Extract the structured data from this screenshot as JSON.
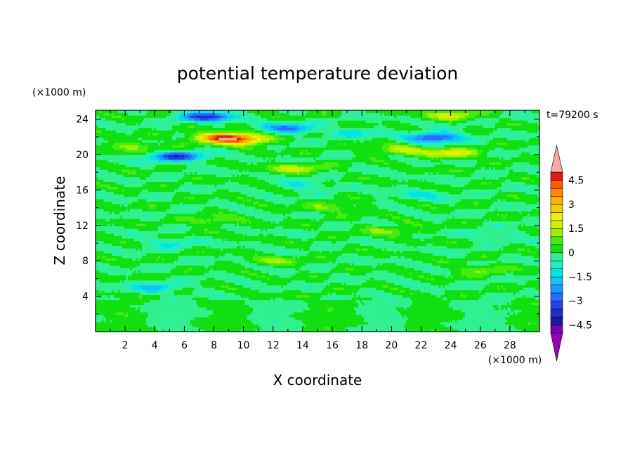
{
  "chart_data": {
    "type": "heatmap",
    "title": "potential temperature deviation",
    "xlabel": "X coordinate",
    "ylabel": "Z coordinate",
    "x_unit": "(×1000 m)",
    "y_unit": "(×1000 m)",
    "time_label": "t=79200 s",
    "xlim": [
      0,
      30
    ],
    "ylim": [
      0,
      25
    ],
    "x_ticks": [
      2,
      4,
      6,
      8,
      10,
      12,
      14,
      16,
      18,
      20,
      22,
      24,
      26,
      28
    ],
    "x_tick_labels": [
      "2",
      "4",
      "6",
      "8",
      "10",
      "12",
      "14",
      "16",
      "18",
      "20",
      "22",
      "24",
      "26",
      "28"
    ],
    "y_ticks": [
      4,
      8,
      12,
      16,
      20,
      24
    ],
    "y_tick_labels": [
      "4",
      "8",
      "12",
      "16",
      "20",
      "24"
    ],
    "colorbar": {
      "levels": [
        -5,
        -4.5,
        -4,
        -3.5,
        -3,
        -2.5,
        -2,
        -1.5,
        -1,
        -0.5,
        0,
        0.5,
        1,
        1.5,
        2,
        2.5,
        3,
        3.5,
        4,
        4.5,
        5
      ],
      "colors": [
        "#7a00b0",
        "#1a1aa0",
        "#1e2ecc",
        "#2246e6",
        "#2a6cff",
        "#1c98ff",
        "#18c0ff",
        "#00e5e5",
        "#20f0c0",
        "#30f090",
        "#10e010",
        "#48ea10",
        "#a0f000",
        "#d0f000",
        "#f0f000",
        "#f0d000",
        "#ffb000",
        "#ff8800",
        "#ff5a00",
        "#e01818"
      ],
      "under_color": "#9a00b4",
      "over_color": "#f4a8a8",
      "tick_values": [
        4.5,
        3,
        1.5,
        0,
        -1.5,
        -3,
        -4.5
      ],
      "tick_labels": [
        "4.5",
        "3",
        "1.5",
        "0",
        "−1.5",
        "−3",
        "−4.5"
      ]
    },
    "features": [
      {
        "x": 8.5,
        "z": 22.0,
        "value": 4.0
      },
      {
        "x": 10.0,
        "z": 21.7,
        "value": 3.0
      },
      {
        "x": 7.5,
        "z": 24.3,
        "value": -3.5
      },
      {
        "x": 13.0,
        "z": 23.0,
        "value": -2.5
      },
      {
        "x": 5.5,
        "z": 19.8,
        "value": -3.5
      },
      {
        "x": 23.0,
        "z": 22.0,
        "value": -3.5
      },
      {
        "x": 24.0,
        "z": 20.2,
        "value": 2.0
      },
      {
        "x": 20.5,
        "z": 20.5,
        "value": 1.5
      },
      {
        "x": 13.5,
        "z": 18.5,
        "value": 1.5
      },
      {
        "x": 2.5,
        "z": 21.0,
        "value": 1.2
      },
      {
        "x": 24.0,
        "z": 24.5,
        "value": 1.5
      },
      {
        "x": 17.5,
        "z": 22.5,
        "value": -1.0
      },
      {
        "x": 16.0,
        "z": 14.0,
        "value": 1.0
      },
      {
        "x": 20.0,
        "z": 11.5,
        "value": 1.0
      },
      {
        "x": 8.0,
        "z": 12.5,
        "value": 1.0
      },
      {
        "x": 12.0,
        "z": 8.0,
        "value": 1.0
      },
      {
        "x": 26.0,
        "z": 7.0,
        "value": 1.0
      },
      {
        "x": 4.0,
        "z": 5.0,
        "value": -1.5
      },
      {
        "x": 14.0,
        "z": 16.5,
        "value": -1.0
      },
      {
        "x": 5.0,
        "z": 10.0,
        "value": -1.0
      },
      {
        "x": 22.0,
        "z": 15.5,
        "value": -1.0
      },
      {
        "x": 27.0,
        "z": 11.0,
        "value": -0.8
      },
      {
        "x": 18.0,
        "z": 2.0,
        "value": 0.6
      },
      {
        "x": 6.0,
        "z": 2.5,
        "value": -0.5
      }
    ]
  }
}
